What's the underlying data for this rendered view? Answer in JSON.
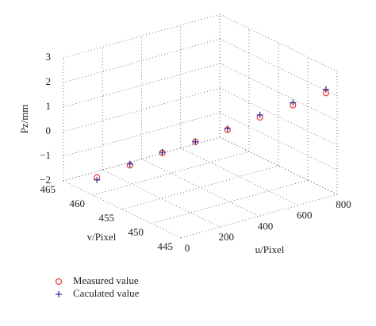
{
  "chart_data": {
    "type": "scatter3d",
    "xlabel": "u/Pixel",
    "ylabel": "v/Pixel",
    "zlabel": "Pz/mm",
    "xlim": [
      0,
      800
    ],
    "xticks": [
      0,
      200,
      400,
      600,
      800
    ],
    "ylim": [
      445,
      465
    ],
    "yticks": [
      445,
      450,
      455,
      460,
      465
    ],
    "zlim": [
      -2,
      3
    ],
    "zticks": [
      {
        "value": -2,
        "label": "−2"
      },
      {
        "value": -1,
        "label": "−1"
      },
      0,
      1,
      2,
      3
    ],
    "grid": true,
    "series": [
      {
        "name": "Measured value",
        "color": "#e8392b",
        "marker": "circle",
        "x": [
          0,
          115,
          230,
          345,
          455,
          570,
          685,
          800
        ],
        "y": [
          459.3,
          457.5,
          455.8,
          454.0,
          452.2,
          450.5,
          448.7,
          446.9
        ],
        "z": [
          -1.2,
          -0.75,
          -0.3,
          0.1,
          0.55,
          1.0,
          1.45,
          1.9
        ]
      },
      {
        "name": "Caculated value",
        "color": "#2b2b9e",
        "marker": "plus",
        "x": [
          0,
          115,
          230,
          345,
          455,
          570,
          685,
          800
        ],
        "y": [
          459.3,
          457.5,
          455.8,
          454.0,
          452.2,
          450.5,
          448.7,
          446.9
        ],
        "z": [
          -1.3,
          -0.7,
          -0.28,
          0.1,
          0.6,
          1.1,
          1.55,
          2.05
        ]
      }
    ]
  }
}
